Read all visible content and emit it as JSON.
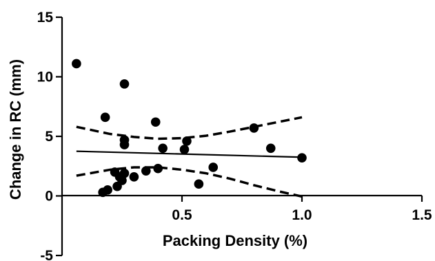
{
  "chart_data": {
    "type": "scatter",
    "title": "",
    "xlabel": "Packing Density (%)",
    "ylabel": "Change in RC (mm)",
    "xlim": [
      0.0,
      1.5
    ],
    "ylim": [
      -5,
      15
    ],
    "x_ticks": [
      0.5,
      1.0,
      1.5
    ],
    "x_tick_labels": [
      "0.5",
      "1.0",
      "1.5"
    ],
    "y_ticks": [
      -5,
      0,
      5,
      10,
      15
    ],
    "y_tick_labels": [
      "-5",
      "0",
      "5",
      "10",
      "15"
    ],
    "grid": false,
    "legend": "none",
    "colors": {
      "points": "#000000",
      "fit_line": "#000000",
      "confidence_band": "#000000",
      "axes": "#000000"
    },
    "series": [
      {
        "type": "scatter",
        "points": [
          {
            "x": 0.06,
            "y": 11.1
          },
          {
            "x": 0.17,
            "y": 0.3
          },
          {
            "x": 0.18,
            "y": 6.6
          },
          {
            "x": 0.19,
            "y": 0.5
          },
          {
            "x": 0.22,
            "y": 2.0
          },
          {
            "x": 0.23,
            "y": 0.8
          },
          {
            "x": 0.24,
            "y": 1.6
          },
          {
            "x": 0.25,
            "y": 1.3
          },
          {
            "x": 0.26,
            "y": 9.4
          },
          {
            "x": 0.26,
            "y": 4.3
          },
          {
            "x": 0.26,
            "y": 4.7
          },
          {
            "x": 0.26,
            "y": 1.9
          },
          {
            "x": 0.3,
            "y": 1.6
          },
          {
            "x": 0.35,
            "y": 2.1
          },
          {
            "x": 0.39,
            "y": 6.2
          },
          {
            "x": 0.4,
            "y": 2.3
          },
          {
            "x": 0.42,
            "y": 4.0
          },
          {
            "x": 0.51,
            "y": 3.9
          },
          {
            "x": 0.52,
            "y": 4.6
          },
          {
            "x": 0.57,
            "y": 1.0
          },
          {
            "x": 0.63,
            "y": 2.4
          },
          {
            "x": 0.8,
            "y": 5.7
          },
          {
            "x": 0.87,
            "y": 4.0
          },
          {
            "x": 1.0,
            "y": 3.2
          }
        ]
      },
      {
        "type": "line",
        "style": "solid",
        "x": [
          0.06,
          1.0
        ],
        "y": [
          3.75,
          3.25
        ]
      },
      {
        "type": "line",
        "style": "dashed",
        "x": [
          0.06,
          0.2,
          0.3,
          0.4,
          0.5,
          0.6,
          0.7,
          0.8,
          0.9,
          1.0
        ],
        "y": [
          5.8,
          5.2,
          4.95,
          4.8,
          4.85,
          5.05,
          5.4,
          5.8,
          6.2,
          6.6
        ]
      },
      {
        "type": "line",
        "style": "dashed",
        "x": [
          0.06,
          0.2,
          0.3,
          0.4,
          0.5,
          0.6,
          0.7,
          0.8,
          0.9,
          1.0
        ],
        "y": [
          1.7,
          2.2,
          2.4,
          2.4,
          2.2,
          1.9,
          1.45,
          0.9,
          0.4,
          -0.05
        ]
      }
    ]
  }
}
